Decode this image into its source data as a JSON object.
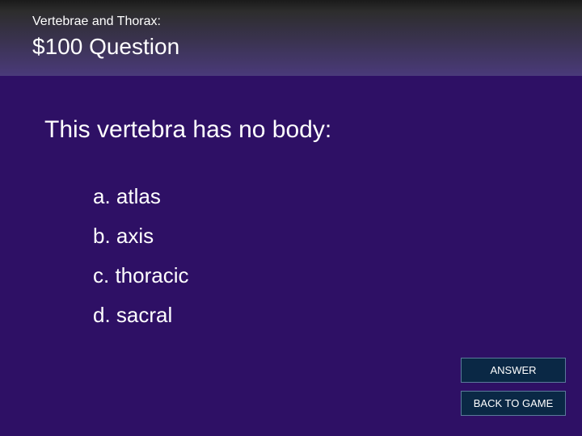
{
  "header": {
    "category": "Vertebrae and Thorax:",
    "title": "$100 Question"
  },
  "question": {
    "text": "This vertebra has no body:",
    "options": [
      "a. atlas",
      "b. axis",
      "c. thoracic",
      "d. sacral"
    ]
  },
  "buttons": {
    "answer": "ANSWER",
    "back": "BACK TO GAME"
  },
  "colors": {
    "background": "#2e1065",
    "header_gradient_start": "#1a1a1a",
    "header_gradient_mid": "#2d2d2d",
    "header_gradient_end": "#4a3a7a",
    "text": "#ffffff",
    "button_bg": "#0a2845",
    "button_border": "#5a7a9a"
  },
  "typography": {
    "category_fontsize": 16,
    "title_fontsize": 28,
    "question_fontsize": 30,
    "option_fontsize": 26,
    "button_fontsize": 13
  }
}
